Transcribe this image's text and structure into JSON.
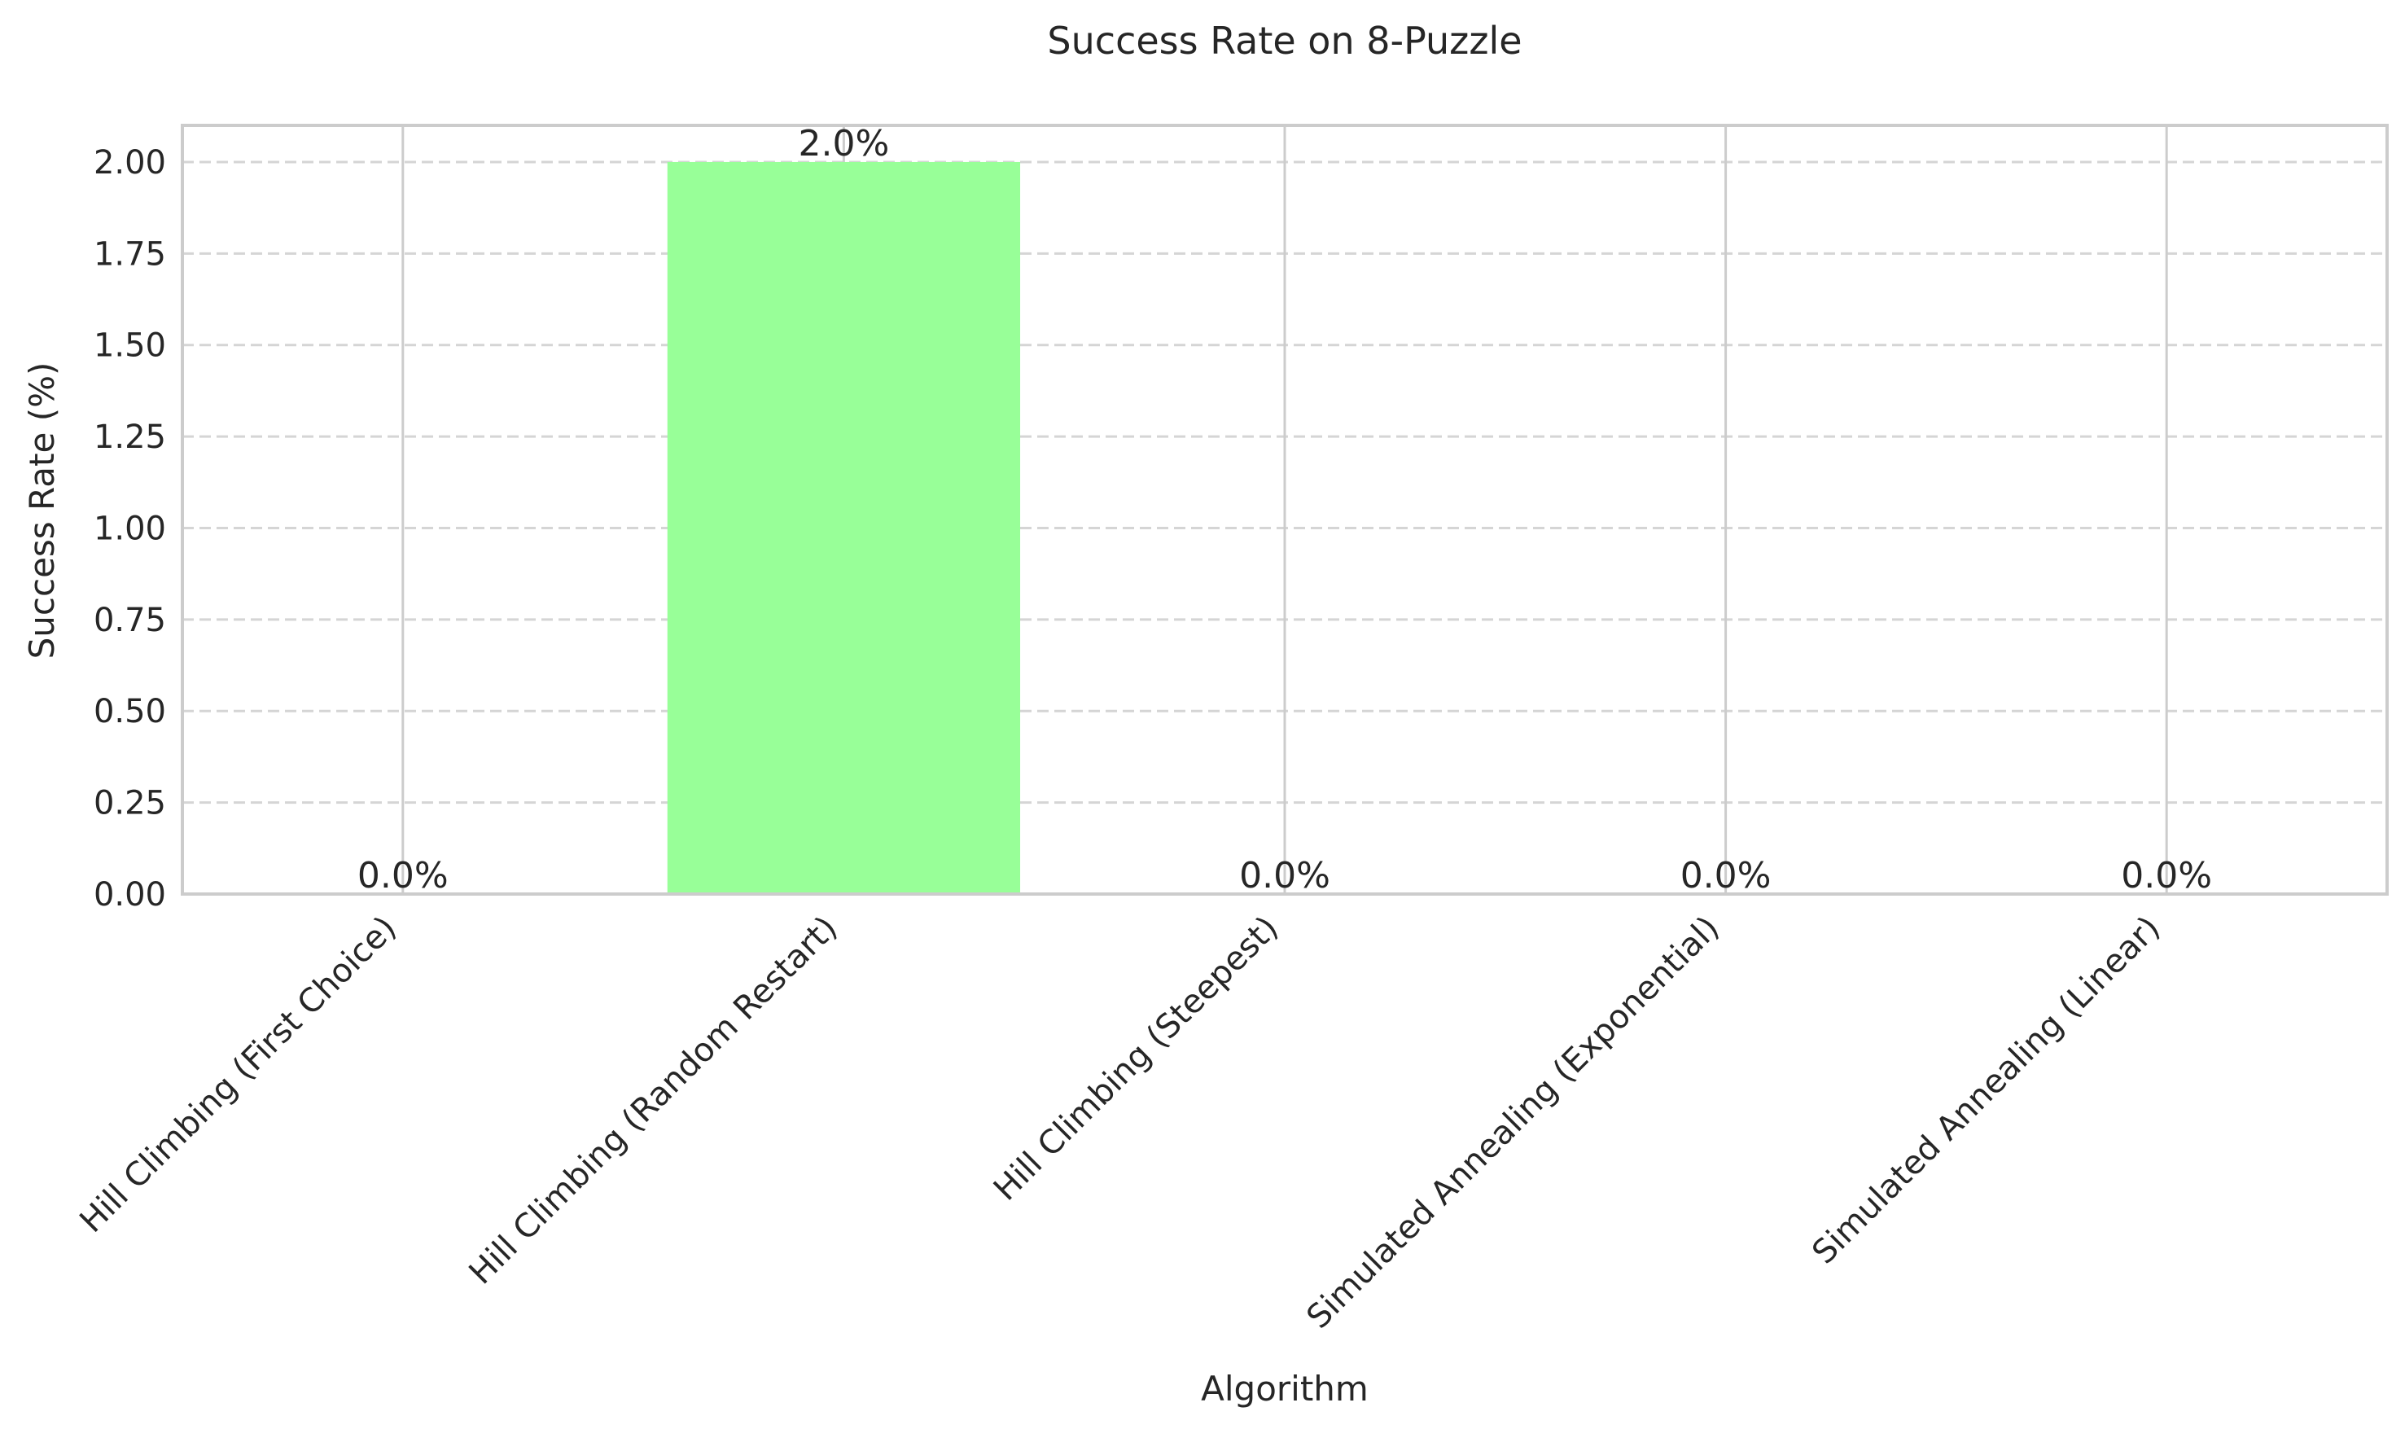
{
  "chart_data": {
    "type": "bar",
    "title": "Success Rate on 8-Puzzle",
    "xlabel": "Algorithm",
    "ylabel": "Success Rate (%)",
    "categories": [
      "Hill Climbing (First Choice)",
      "Hill Climbing (Random Restart)",
      "Hill Climbing (Steepest)",
      "Simulated Annealing (Exponential)",
      "Simulated Annealing (Linear)"
    ],
    "values": [
      0.0,
      2.0,
      0.0,
      0.0,
      0.0
    ],
    "data_labels": [
      "0.0%",
      "2.0%",
      "0.0%",
      "0.0%",
      "0.0%"
    ],
    "ylim": [
      0,
      2.1
    ],
    "yticks": [
      0.0,
      0.25,
      0.5,
      0.75,
      1.0,
      1.25,
      1.5,
      1.75,
      2.0
    ],
    "ytick_labels": [
      "0.00",
      "0.25",
      "0.50",
      "0.75",
      "1.00",
      "1.25",
      "1.50",
      "1.75",
      "2.00"
    ],
    "bar_color": "#98ff98",
    "grid": true,
    "legend": "none"
  }
}
